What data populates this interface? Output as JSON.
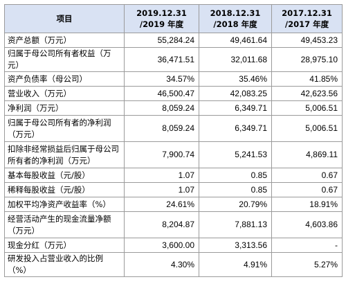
{
  "header": {
    "item_label": "项目",
    "columns": [
      {
        "line1": "2019.12.31",
        "line2": "/2019 年度"
      },
      {
        "line1": "2018.12.31",
        "line2": "/2018 年度"
      },
      {
        "line1": "2017.12.31",
        "line2": "/2017 年度"
      }
    ]
  },
  "rows": [
    {
      "label": "资产总额（万元）",
      "values": [
        "55,284.24",
        "49,461.64",
        "49,453.23"
      ]
    },
    {
      "label": "归属于母公司所有者权益（万元）",
      "values": [
        "36,471.51",
        "32,011.68",
        "28,975.10"
      ]
    },
    {
      "label": "资产负债率（母公司）",
      "values": [
        "34.57%",
        "35.46%",
        "41.85%"
      ]
    },
    {
      "label": "营业收入（万元）",
      "values": [
        "46,500.47",
        "42,083.25",
        "42,623.56"
      ]
    },
    {
      "label": "净利润（万元）",
      "values": [
        "8,059.24",
        "6,349.71",
        "5,006.51"
      ]
    },
    {
      "label": "归属于母公司所有者的净利润（万元）",
      "values": [
        "8,059.24",
        "6,349.71",
        "5,006.51"
      ]
    },
    {
      "label": "扣除非经常损益后归属于母公司所有者的净利润（万元）",
      "values": [
        "7,900.74",
        "5,241.53",
        "4,869.11"
      ]
    },
    {
      "label": "基本每股收益（元/股）",
      "values": [
        "1.07",
        "0.85",
        "0.67"
      ]
    },
    {
      "label": "稀释每股收益（元/股）",
      "values": [
        "1.07",
        "0.85",
        "0.67"
      ]
    },
    {
      "label": "加权平均净资产收益率（%）",
      "values": [
        "24.61%",
        "20.79%",
        "18.91%"
      ]
    },
    {
      "label": "经营活动产生的现金流量净额（万元）",
      "values": [
        "8,204.87",
        "7,881.13",
        "4,603.86"
      ]
    },
    {
      "label": "现金分红（万元）",
      "values": [
        "3,600.00",
        "3,313.56",
        "-"
      ]
    },
    {
      "label": "研发投入占营业收入的比例（%）",
      "values": [
        "4.30%",
        "4.91%",
        "5.27%"
      ]
    }
  ]
}
